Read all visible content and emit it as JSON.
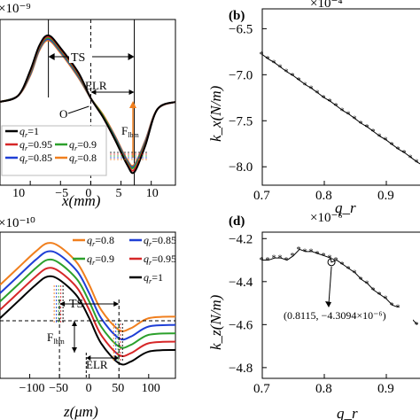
{
  "panels": {
    "a": {
      "exponent": "×10⁻⁹",
      "xlabel": "x(mm)",
      "xticks": [
        "10",
        "−5",
        "0",
        "5",
        "10"
      ],
      "annotations": {
        "ts": "TS",
        "elr": "ELR",
        "origin": "O",
        "force": "F",
        "force_sub": "lbm"
      },
      "legend": [
        "q_r=1",
        "q_r=0.95",
        "q_r=0.9",
        "q_r=0.85",
        "q_r=0.8"
      ]
    },
    "b": {
      "tag": "(b)",
      "exponent": "×10⁻⁴",
      "ylabel": "k_x(N/m)",
      "xlabel": "q_r",
      "xticks": [
        "0.7",
        "0.8",
        "0.9"
      ],
      "yticks": [
        "−6.5",
        "−7.0",
        "−7.5",
        "−8.0"
      ]
    },
    "c": {
      "exponent": "×10⁻¹⁰",
      "xlabel": "z(μm)",
      "xticks": [
        "−100",
        "−50",
        "0",
        "50",
        "100"
      ],
      "annotations": {
        "ts": "TS",
        "elr": "ELR",
        "force": "F",
        "force_sub": "lbm"
      },
      "legend": [
        "q_r=0.8",
        "q_r=0.85",
        "q_r=0.9",
        "q_r=0.95",
        "q_r=1"
      ]
    },
    "d": {
      "tag": "(d)",
      "exponent": "×10⁻⁶",
      "ylabel": "k_z(N/m)",
      "xlabel": "q_r",
      "xticks": [
        "0.7",
        "0.8",
        "0.9"
      ],
      "yticks": [
        "−4.2",
        "−4.4",
        "−4.6",
        "−4.8"
      ],
      "callout": "(0.8115, −4.3094×10⁻⁶)"
    }
  },
  "colors": {
    "q1": "#000000",
    "q095": "#d62728",
    "q09": "#2ca02c",
    "q085": "#1f3fd6",
    "q08": "#f07f1e",
    "marker": "#d62728",
    "arrow": "#f07f1e"
  },
  "chart_data": [
    {
      "panel": "a",
      "type": "line",
      "xlabel": "x(mm)",
      "xlim": [
        -15,
        14
      ],
      "series": [
        {
          "name": "q_r=1",
          "x": [
            -15,
            -12,
            -10,
            -8.5,
            -7,
            -5,
            -2,
            0,
            2,
            4,
            6,
            7.2,
            9,
            11,
            14
          ],
          "y": [
            0,
            0.5,
            2.5,
            4.5,
            5.3,
            4.3,
            2.3,
            0.3,
            -1.2,
            -3,
            -5,
            -5.6,
            -3.5,
            -0.6,
            0
          ]
        },
        {
          "name": "q_r=0.95",
          "x": [
            -15,
            -12,
            -10,
            -8.5,
            -7,
            -5,
            -2,
            0,
            2,
            4,
            6,
            7.2,
            9,
            11,
            14
          ],
          "y": [
            0,
            0.5,
            2.4,
            4.4,
            5.2,
            4.2,
            2.2,
            0.3,
            -1.2,
            -3,
            -4.9,
            -5.4,
            -3.4,
            -0.6,
            0
          ]
        },
        {
          "name": "q_r=0.9",
          "x": [
            -15,
            -12,
            -10,
            -8.5,
            -7,
            -5,
            -2,
            0,
            2,
            4,
            6,
            7.2,
            9,
            11,
            14
          ],
          "y": [
            0,
            0.5,
            2.3,
            4.3,
            5.1,
            4.1,
            2.1,
            0.3,
            -1.1,
            -2.9,
            -4.8,
            -5.2,
            -3.3,
            -0.6,
            0
          ]
        },
        {
          "name": "q_r=0.85",
          "x": [
            -15,
            -12,
            -10,
            -8.5,
            -7,
            -5,
            -2,
            0,
            2,
            4,
            6,
            7.2,
            9,
            11,
            14
          ],
          "y": [
            0,
            0.5,
            2.2,
            4.2,
            5,
            4,
            2,
            0.3,
            -1.1,
            -2.8,
            -4.7,
            -5.1,
            -3.2,
            -0.6,
            0
          ]
        },
        {
          "name": "q_r=0.8",
          "x": [
            -15,
            -12,
            -10,
            -8.5,
            -7,
            -5,
            -2,
            0,
            2,
            4,
            6,
            7.2,
            9,
            11,
            14
          ],
          "y": [
            0,
            0.5,
            2.1,
            4.1,
            4.9,
            3.9,
            1.9,
            0.3,
            -1,
            -2.7,
            -4.6,
            -5,
            -3.1,
            -0.6,
            0
          ]
        }
      ]
    },
    {
      "panel": "b",
      "type": "line",
      "xlabel": "q_r",
      "ylabel": "k_x(N/m)",
      "xlim": [
        0.7,
        0.96
      ],
      "ylim": [
        -8.2,
        -6.4
      ],
      "series": [
        {
          "x": [
            0.7,
            0.71,
            0.72,
            0.73,
            0.74,
            0.75,
            0.76,
            0.77,
            0.78,
            0.79,
            0.8,
            0.81,
            0.82,
            0.83,
            0.84,
            0.85,
            0.86,
            0.87,
            0.88,
            0.89,
            0.9,
            0.91,
            0.92,
            0.93,
            0.94,
            0.95,
            0.96
          ],
          "y": [
            -6.78,
            -6.83,
            -6.87,
            -6.92,
            -6.97,
            -7.01,
            -7.06,
            -7.11,
            -7.15,
            -7.2,
            -7.25,
            -7.29,
            -7.34,
            -7.39,
            -7.43,
            -7.48,
            -7.53,
            -7.57,
            -7.62,
            -7.67,
            -7.71,
            -7.76,
            -7.81,
            -7.85,
            -7.9,
            -7.95,
            -7.99
          ]
        }
      ]
    },
    {
      "panel": "c",
      "type": "line",
      "xlabel": "z(μm)",
      "xlim": [
        -150,
        145
      ],
      "series": [
        {
          "name": "q_r=0.8",
          "x": [
            -150,
            -120,
            -90,
            -70,
            -50,
            -20,
            0,
            20,
            50,
            70,
            100,
            145
          ],
          "y": [
            5,
            7,
            9,
            10,
            9.6,
            7.6,
            5,
            2,
            -0.4,
            -0.2,
            1,
            1.2
          ]
        },
        {
          "name": "q_r=0.85",
          "x": [
            -150,
            -120,
            -90,
            -70,
            -50,
            -20,
            0,
            20,
            50,
            70,
            100,
            145
          ],
          "y": [
            4,
            6,
            8,
            9,
            8.6,
            6.6,
            4,
            1,
            -1.4,
            -1.2,
            0,
            0.2
          ]
        },
        {
          "name": "q_r=0.9",
          "x": [
            -150,
            -120,
            -90,
            -70,
            -50,
            -20,
            0,
            20,
            50,
            70,
            100,
            145
          ],
          "y": [
            3,
            5,
            7,
            8,
            7.6,
            5.6,
            3,
            0,
            -2.4,
            -2.2,
            -1,
            -0.8
          ]
        },
        {
          "name": "q_r=0.95",
          "x": [
            -150,
            -120,
            -90,
            -70,
            -50,
            -20,
            0,
            20,
            50,
            70,
            100,
            145
          ],
          "y": [
            2,
            4,
            6,
            7,
            6.6,
            4.6,
            2,
            -1,
            -3.4,
            -3.2,
            -2,
            -1.8
          ]
        },
        {
          "name": "q_r=1",
          "x": [
            -150,
            -120,
            -90,
            -70,
            -50,
            -20,
            0,
            20,
            50,
            70,
            100,
            145
          ],
          "y": [
            1,
            3,
            5,
            6,
            5.6,
            3.6,
            1,
            -2,
            -4.4,
            -4.2,
            -3,
            -2.8
          ]
        }
      ]
    },
    {
      "panel": "d",
      "type": "line",
      "xlabel": "q_r",
      "ylabel": "k_z(N/m)",
      "xlim": [
        0.7,
        0.96
      ],
      "ylim": [
        -4.85,
        -4.17
      ],
      "series": [
        {
          "x": [
            0.7,
            0.71,
            0.72,
            0.73,
            0.74,
            0.75,
            0.76,
            0.77,
            0.78,
            0.79,
            0.8,
            0.81,
            0.8115,
            0.82,
            0.83,
            0.84,
            0.85,
            0.86,
            0.87,
            0.88,
            0.89,
            0.9,
            0.91,
            0.92,
            0.93,
            0.94,
            0.95
          ],
          "y": [
            -4.3,
            -4.3,
            -4.29,
            -4.29,
            -4.3,
            -4.28,
            -4.25,
            -4.26,
            -4.26,
            -4.27,
            -4.28,
            -4.29,
            -4.3094,
            -4.3,
            -4.32,
            -4.34,
            -4.36,
            -4.39,
            -4.41,
            -4.44,
            -4.46,
            -4.48,
            -4.51,
            -4.52,
            -4.54,
            -4.57,
            -4.6
          ]
        }
      ]
    }
  ]
}
